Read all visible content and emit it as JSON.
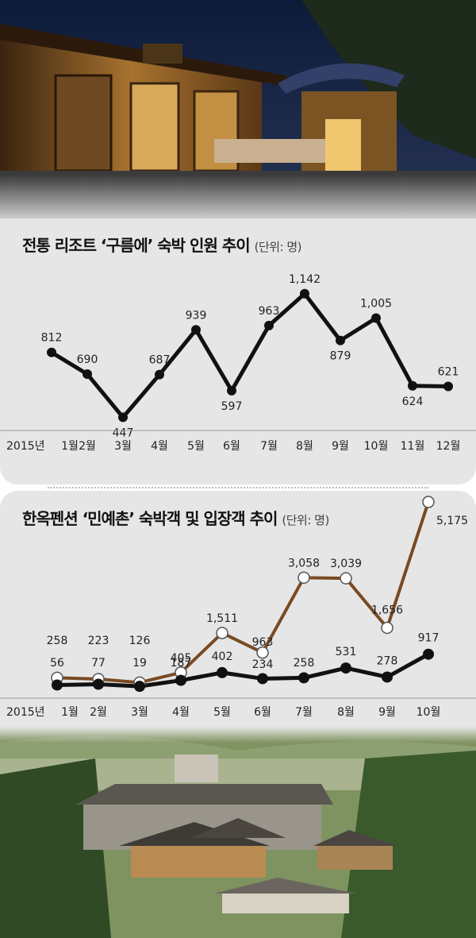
{
  "charts_text": {
    "chart1_title": "전통 리조트 ‘구름에’ 숙박 인원 추이",
    "chart1_unit": "(단위: 명)",
    "chart2_title": "한옥펜션 ‘민예촌’ 숙박객 및 입장객 추이",
    "chart2_unit": "(단위: 명)"
  },
  "chart_data": [
    {
      "type": "line",
      "title": "전통 리조트 ‘구름에’ 숙박 인원 추이",
      "unit": "(단위: 명)",
      "year_label": "2015년",
      "categories": [
        "1월",
        "2월",
        "3월",
        "4월",
        "5월",
        "6월",
        "7월",
        "8월",
        "9월",
        "10월",
        "11월",
        "12월"
      ],
      "series": [
        {
          "values": [
            812,
            690,
            447,
            687,
            939,
            597,
            963,
            1142,
            879,
            1005,
            624,
            621
          ],
          "labels": [
            "812",
            "690",
            "447",
            "687",
            "939",
            "597",
            "963",
            "1,142",
            "879",
            "1,005",
            "624",
            "621"
          ],
          "color": "#111111"
        }
      ],
      "ylim": [
        440,
        1150
      ],
      "grid": false
    },
    {
      "type": "line",
      "title": "한옥펜션 ‘민예촌’ 숙박객 및 입장객 추이",
      "unit": "(단위: 명)",
      "year_label": "2015년",
      "categories": [
        "1월",
        "2월",
        "3월",
        "4월",
        "5월",
        "6월",
        "7월",
        "8월",
        "9월",
        "10월"
      ],
      "series": [
        {
          "values": [
            258,
            223,
            126,
            405,
            1511,
            963,
            3058,
            3039,
            1656,
            5175
          ],
          "labels": [
            "258",
            "223",
            "126",
            "405",
            "1,511",
            "963",
            "3,058",
            "3,039",
            "1,656",
            "5,175"
          ],
          "color": "#7a4a22",
          "marker": "open-circle"
        },
        {
          "values": [
            56,
            77,
            19,
            187,
            402,
            234,
            258,
            531,
            278,
            917
          ],
          "labels": [
            "56",
            "77",
            "19",
            "187",
            "402",
            "234",
            "258",
            "531",
            "278",
            "917"
          ],
          "color": "#111111",
          "marker": "filled-circle"
        }
      ],
      "ylim": [
        0,
        5175
      ],
      "grid": false
    }
  ]
}
